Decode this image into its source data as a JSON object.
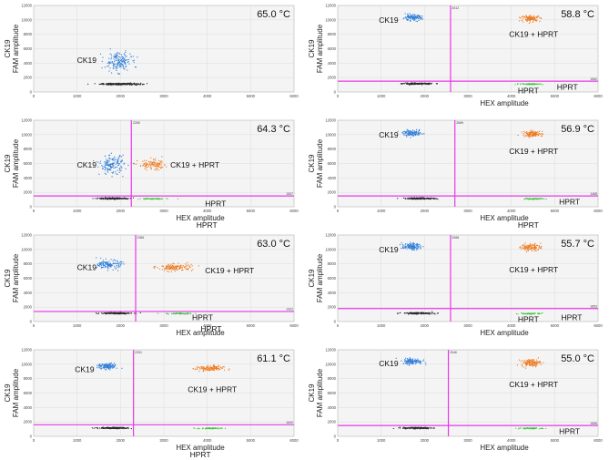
{
  "chart_data": [
    {
      "type": "scatter",
      "temperature": "65.0 °C",
      "xlabel": "",
      "ylabel_top": "CK19",
      "ylabel": "FAM amplitude",
      "xlim": [
        0,
        6000
      ],
      "ylim": [
        0,
        12000
      ],
      "x_ticks": [
        "0",
        "1000",
        "2000",
        "3000",
        "4000",
        "5000",
        "6000"
      ],
      "y_ticks": [
        "0",
        "2000",
        "4000",
        "6000",
        "8000",
        "10000",
        "12000"
      ],
      "threshold_x": null,
      "threshold_x_label": "",
      "threshold_y": null,
      "threshold_y_label": "",
      "clusters": [
        {
          "name": "double-negative",
          "color": "#2b2b2b",
          "center": [
            2000,
            1100
          ],
          "spread": [
            230,
            60
          ],
          "count": 260
        },
        {
          "name": "CK19",
          "color": "#2f7fd8",
          "center": [
            1950,
            4200
          ],
          "spread": [
            150,
            650
          ],
          "count": 170
        }
      ],
      "labels": [
        {
          "text": "CK19",
          "x": 1000,
          "y": 4400
        }
      ]
    },
    {
      "type": "scatter",
      "temperature": "58.8 °C",
      "xlabel": "HEX amplitude",
      "ylabel_top": "CK19",
      "ylabel": "FAM amplitude",
      "xlim": [
        0,
        6000
      ],
      "ylim": [
        0,
        12000
      ],
      "x_ticks": [
        "0",
        "1000",
        "2000",
        "3000",
        "4000",
        "5000",
        "6000"
      ],
      "y_ticks": [
        "0",
        "2000",
        "4000",
        "6000",
        "8000",
        "10000",
        "12000"
      ],
      "threshold_x": 2600,
      "threshold_x_label": "2612",
      "threshold_y": 1500,
      "threshold_y_label": "1562",
      "clusters": [
        {
          "name": "double-negative",
          "color": "#2b2b2b",
          "center": [
            1850,
            1150
          ],
          "spread": [
            170,
            50
          ],
          "count": 180
        },
        {
          "name": "CK19",
          "color": "#2f7fd8",
          "center": [
            1720,
            10300
          ],
          "spread": [
            110,
            200
          ],
          "count": 120
        },
        {
          "name": "CK19 + HPRT",
          "color": "#ee7a1e",
          "center": [
            4450,
            10200
          ],
          "spread": [
            110,
            200
          ],
          "count": 110
        },
        {
          "name": "HPRT",
          "color": "#3ec63e",
          "center": [
            4450,
            1100
          ],
          "spread": [
            140,
            40
          ],
          "count": 60
        }
      ],
      "labels": [
        {
          "text": "CK19",
          "x": 950,
          "y": 10000
        },
        {
          "text": "CK19 + HPRT",
          "x": 3950,
          "y": 8000
        },
        {
          "text": "HPRT",
          "x": 4150,
          "y": 200
        },
        {
          "text": "HPRT",
          "x": 5050,
          "y": 700
        }
      ]
    },
    {
      "type": "scatter",
      "temperature": "64.3 °C",
      "xlabel": "HEX amplitude",
      "ylabel_top": "CK19",
      "ylabel": "FAM amplitude",
      "xlim": [
        0,
        6000
      ],
      "ylim": [
        0,
        12000
      ],
      "x_ticks": [
        "0",
        "1000",
        "2000",
        "3000",
        "4000",
        "5000",
        "6000"
      ],
      "y_ticks": [
        "0",
        "2000",
        "4000",
        "6000",
        "8000",
        "10000",
        "12000"
      ],
      "threshold_x": 2250,
      "threshold_x_label": "2258",
      "threshold_y": 1500,
      "threshold_y_label": "1507",
      "clusters": [
        {
          "name": "double-negative",
          "color": "#2b2b2b",
          "center": [
            1850,
            1150
          ],
          "spread": [
            180,
            50
          ],
          "count": 200
        },
        {
          "name": "CK19",
          "color": "#2f7fd8",
          "center": [
            1800,
            5800
          ],
          "spread": [
            140,
            650
          ],
          "count": 150
        },
        {
          "name": "CK19 + HPRT",
          "color": "#ee7a1e",
          "center": [
            2750,
            5800
          ],
          "spread": [
            170,
            350
          ],
          "count": 110
        },
        {
          "name": "HPRT",
          "color": "#3ec63e",
          "center": [
            2750,
            1100
          ],
          "spread": [
            160,
            40
          ],
          "count": 60
        }
      ],
      "labels": [
        {
          "text": "CK19",
          "x": 1000,
          "y": 5800
        },
        {
          "text": "CK19 + HPRT",
          "x": 3150,
          "y": 5800
        },
        {
          "text": "HPRT",
          "x": 3950,
          "y": 450
        },
        {
          "text": "HPRT",
          "x": 3750,
          "y": -2500
        }
      ]
    },
    {
      "type": "scatter",
      "temperature": "56.9 °C",
      "xlabel": "HEX amplitude",
      "ylabel_top": "CK19",
      "ylabel": "FAM amplitude",
      "xlim": [
        0,
        6000
      ],
      "ylim": [
        0,
        12000
      ],
      "x_ticks": [
        "0",
        "1000",
        "2000",
        "3000",
        "4000",
        "5000",
        "6000"
      ],
      "y_ticks": [
        "0",
        "2000",
        "4000",
        "6000",
        "8000",
        "10000",
        "12000"
      ],
      "threshold_x": 2700,
      "threshold_x_label": "2689",
      "threshold_y": 1500,
      "threshold_y_label": "1468",
      "clusters": [
        {
          "name": "double-negative",
          "color": "#2b2b2b",
          "center": [
            1900,
            1150
          ],
          "spread": [
            170,
            50
          ],
          "count": 180
        },
        {
          "name": "CK19",
          "color": "#2f7fd8",
          "center": [
            1720,
            10200
          ],
          "spread": [
            110,
            200
          ],
          "count": 120
        },
        {
          "name": "CK19 + HPRT",
          "color": "#ee7a1e",
          "center": [
            4500,
            10100
          ],
          "spread": [
            110,
            200
          ],
          "count": 110
        },
        {
          "name": "HPRT",
          "color": "#3ec63e",
          "center": [
            4500,
            1100
          ],
          "spread": [
            140,
            40
          ],
          "count": 60
        }
      ],
      "labels": [
        {
          "text": "CK19",
          "x": 950,
          "y": 10000
        },
        {
          "text": "CK19 + HPRT",
          "x": 3950,
          "y": 7700
        },
        {
          "text": "HPRT",
          "x": 5100,
          "y": 700
        },
        {
          "text": "HPRT",
          "x": 4150,
          "y": -2500
        }
      ]
    },
    {
      "type": "scatter",
      "temperature": "63.0 °C",
      "xlabel": "HEX amplitude",
      "ylabel_top": "CK19",
      "ylabel": "FAM amplitude",
      "xlim": [
        0,
        6000
      ],
      "ylim": [
        0,
        12000
      ],
      "x_ticks": [
        "0",
        "1000",
        "2000",
        "3000",
        "4000",
        "5000",
        "6000"
      ],
      "y_ticks": [
        "0",
        "2000",
        "4000",
        "6000",
        "8000",
        "10000",
        "12000"
      ],
      "threshold_x": 2350,
      "threshold_x_label": "2356",
      "threshold_y": 1400,
      "threshold_y_label": "1422",
      "clusters": [
        {
          "name": "double-negative",
          "color": "#2b2b2b",
          "center": [
            1900,
            1150
          ],
          "spread": [
            170,
            50
          ],
          "count": 180
        },
        {
          "name": "CK19",
          "color": "#2f7fd8",
          "center": [
            1750,
            7900
          ],
          "spread": [
            130,
            300
          ],
          "count": 130
        },
        {
          "name": "CK19 + HPRT",
          "color": "#ee7a1e",
          "center": [
            3250,
            7500
          ],
          "spread": [
            200,
            250
          ],
          "count": 130
        },
        {
          "name": "HPRT",
          "color": "#3ec63e",
          "center": [
            3350,
            1100
          ],
          "spread": [
            160,
            40
          ],
          "count": 60
        }
      ],
      "labels": [
        {
          "text": "CK19",
          "x": 1000,
          "y": 7500
        },
        {
          "text": "CK19 + HPRT",
          "x": 3950,
          "y": 7100
        },
        {
          "text": "HPRT",
          "x": 3650,
          "y": 600
        },
        {
          "text": "HPRT",
          "x": 3850,
          "y": -1000
        }
      ]
    },
    {
      "type": "scatter",
      "temperature": "55.7 °C",
      "xlabel": "HEX amplitude",
      "ylabel_top": "CK19",
      "ylabel": "FAM amplitude",
      "xlim": [
        0,
        6000
      ],
      "ylim": [
        0,
        12000
      ],
      "x_ticks": [
        "0",
        "1000",
        "2000",
        "3000",
        "4000",
        "5000",
        "6000"
      ],
      "y_ticks": [
        "0",
        "2000",
        "4000",
        "6000",
        "8000",
        "10000",
        "12000"
      ],
      "threshold_x": 2600,
      "threshold_x_label": "2568",
      "threshold_y": 1800,
      "threshold_y_label": "1853",
      "clusters": [
        {
          "name": "double-negative",
          "color": "#2b2b2b",
          "center": [
            1850,
            1150
          ],
          "spread": [
            170,
            50
          ],
          "count": 180
        },
        {
          "name": "CK19",
          "color": "#2f7fd8",
          "center": [
            1700,
            10400
          ],
          "spread": [
            110,
            220
          ],
          "count": 120
        },
        {
          "name": "CK19 + HPRT",
          "color": "#ee7a1e",
          "center": [
            4450,
            10300
          ],
          "spread": [
            110,
            250
          ],
          "count": 110
        },
        {
          "name": "HPRT",
          "color": "#3ec63e",
          "center": [
            4450,
            1100
          ],
          "spread": [
            140,
            40
          ],
          "count": 60
        }
      ],
      "labels": [
        {
          "text": "CK19",
          "x": 950,
          "y": 10000
        },
        {
          "text": "CK19 + HPRT",
          "x": 3950,
          "y": 7200
        },
        {
          "text": "HPRT",
          "x": 4150,
          "y": 300
        },
        {
          "text": "HPRT",
          "x": 5150,
          "y": 600
        }
      ]
    },
    {
      "type": "scatter",
      "temperature": "61.1 °C",
      "xlabel": "HEX amplitude",
      "ylabel_top": "CK19",
      "ylabel": "FAM amplitude",
      "xlim": [
        0,
        6000
      ],
      "ylim": [
        0,
        12000
      ],
      "x_ticks": [
        "0",
        "1000",
        "2000",
        "3000",
        "4000",
        "5000",
        "6000"
      ],
      "y_ticks": [
        "0",
        "2000",
        "4000",
        "6000",
        "8000",
        "10000",
        "12000"
      ],
      "threshold_x": 2300,
      "threshold_x_label": "2331",
      "threshold_y": 1600,
      "threshold_y_label": "1600",
      "clusters": [
        {
          "name": "double-negative",
          "color": "#2b2b2b",
          "center": [
            1850,
            1150
          ],
          "spread": [
            170,
            50
          ],
          "count": 180
        },
        {
          "name": "CK19",
          "color": "#2f7fd8",
          "center": [
            1700,
            9700
          ],
          "spread": [
            110,
            200
          ],
          "count": 120
        },
        {
          "name": "CK19 + HPRT",
          "color": "#ee7a1e",
          "center": [
            4050,
            9400
          ],
          "spread": [
            160,
            200
          ],
          "count": 120
        },
        {
          "name": "HPRT",
          "color": "#3ec63e",
          "center": [
            4050,
            1100
          ],
          "spread": [
            140,
            40
          ],
          "count": 60
        }
      ],
      "labels": [
        {
          "text": "CK19",
          "x": 950,
          "y": 9300
        },
        {
          "text": "CK19 + HPRT",
          "x": 3550,
          "y": 6500
        },
        {
          "text": "HPRT",
          "x": 3600,
          "y": -2500
        }
      ]
    },
    {
      "type": "scatter",
      "temperature": "55.0 °C",
      "xlabel": "HEX amplitude",
      "ylabel_top": "CK19",
      "ylabel": "FAM amplitude",
      "xlim": [
        0,
        6000
      ],
      "ylim": [
        0,
        12000
      ],
      "x_ticks": [
        "0",
        "1000",
        "2000",
        "3000",
        "4000",
        "5000",
        "6000"
      ],
      "y_ticks": [
        "0",
        "2000",
        "4000",
        "6000",
        "8000",
        "10000",
        "12000"
      ],
      "threshold_x": 2550,
      "threshold_x_label": "2546",
      "threshold_y": 1500,
      "threshold_y_label": "1555",
      "clusters": [
        {
          "name": "double-negative",
          "color": "#2b2b2b",
          "center": [
            1850,
            1150
          ],
          "spread": [
            170,
            50
          ],
          "count": 180
        },
        {
          "name": "CK19",
          "color": "#2f7fd8",
          "center": [
            1720,
            10400
          ],
          "spread": [
            110,
            200
          ],
          "count": 130
        },
        {
          "name": "CK19 + HPRT",
          "color": "#ee7a1e",
          "center": [
            4450,
            10200
          ],
          "spread": [
            110,
            250
          ],
          "count": 120
        },
        {
          "name": "HPRT",
          "color": "#3ec63e",
          "center": [
            4450,
            1100
          ],
          "spread": [
            140,
            40
          ],
          "count": 60
        }
      ],
      "labels": [
        {
          "text": "CK19",
          "x": 950,
          "y": 10100
        },
        {
          "text": "CK19 + HPRT",
          "x": 3950,
          "y": 7200
        },
        {
          "text": "HPRT",
          "x": 5100,
          "y": 700
        }
      ]
    }
  ]
}
